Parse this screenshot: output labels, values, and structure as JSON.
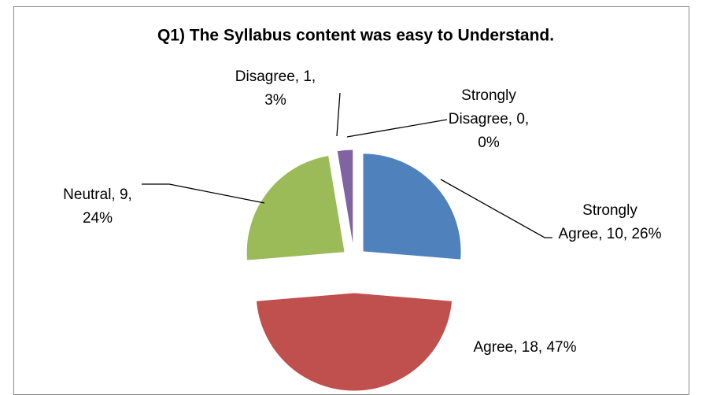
{
  "chart_data": {
    "type": "pie",
    "title": "Q1) The Syllabus content was easy to Understand.",
    "values": [
      10,
      18,
      9,
      1,
      0
    ],
    "value_labels": [
      [
        "Strongly",
        "Agree, 10, 26%"
      ],
      [
        "Agree, 18, 47%"
      ],
      [
        "Neutral, 9,",
        "24%"
      ],
      [
        "Disagree, 1,",
        "3%"
      ],
      [
        "Strongly",
        "Disagree, 0,",
        "0%"
      ]
    ],
    "colors": [
      "#4f81bd",
      "#c0504d",
      "#9bbb59",
      "#8064a2",
      "#4bacc6"
    ]
  }
}
